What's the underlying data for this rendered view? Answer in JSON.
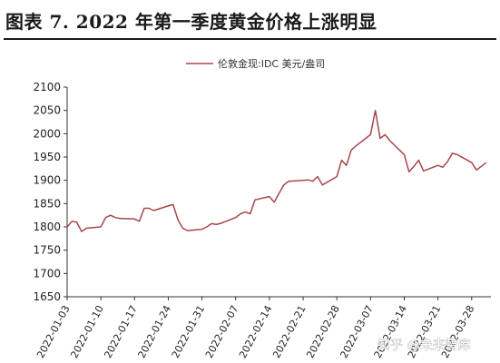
{
  "title": "图表 7.  2022 年第一季度黄金价格上涨明显",
  "watermark": "知乎 @未来智库",
  "colors": {
    "series": "#a8464b",
    "axis": "#333333"
  },
  "chart_data": {
    "type": "line",
    "title": "图表 7.  2022 年第一季度黄金价格上涨明显",
    "ylim": [
      1650,
      2100
    ],
    "yticks": [
      1650,
      1700,
      1750,
      1800,
      1850,
      1900,
      1950,
      2000,
      2050,
      2100
    ],
    "xlim": [
      "2022-01-03",
      "2022-04-01"
    ],
    "xticks": [
      "2022-01-03",
      "2022-01-10",
      "2022-01-17",
      "2022-01-24",
      "2022-01-31",
      "2022-02-07",
      "2022-02-14",
      "2022-02-21",
      "2022-02-28",
      "2022-03-07",
      "2022-03-14",
      "2022-03-21",
      "2022-03-28"
    ],
    "legend": "top-right",
    "series": [
      {
        "name": "伦敦金现:IDC 美元/盎司",
        "x": [
          "2022-01-03",
          "2022-01-04",
          "2022-01-05",
          "2022-01-06",
          "2022-01-07",
          "2022-01-10",
          "2022-01-11",
          "2022-01-12",
          "2022-01-13",
          "2022-01-14",
          "2022-01-17",
          "2022-01-18",
          "2022-01-19",
          "2022-01-20",
          "2022-01-21",
          "2022-01-24",
          "2022-01-25",
          "2022-01-26",
          "2022-01-27",
          "2022-01-28",
          "2022-01-31",
          "2022-02-01",
          "2022-02-02",
          "2022-02-03",
          "2022-02-04",
          "2022-02-07",
          "2022-02-08",
          "2022-02-09",
          "2022-02-10",
          "2022-02-11",
          "2022-02-14",
          "2022-02-15",
          "2022-02-16",
          "2022-02-17",
          "2022-02-18",
          "2022-02-21",
          "2022-02-22",
          "2022-02-23",
          "2022-02-24",
          "2022-02-25",
          "2022-02-28",
          "2022-03-01",
          "2022-03-02",
          "2022-03-03",
          "2022-03-04",
          "2022-03-07",
          "2022-03-08",
          "2022-03-09",
          "2022-03-10",
          "2022-03-11",
          "2022-03-14",
          "2022-03-15",
          "2022-03-16",
          "2022-03-17",
          "2022-03-18",
          "2022-03-21",
          "2022-03-22",
          "2022-03-23",
          "2022-03-24",
          "2022-03-25",
          "2022-03-28",
          "2022-03-29",
          "2022-03-30",
          "2022-03-31"
        ],
        "values": [
          1800,
          1812,
          1810,
          1790,
          1797,
          1800,
          1820,
          1825,
          1820,
          1818,
          1817,
          1812,
          1840,
          1840,
          1835,
          1845,
          1848,
          1815,
          1797,
          1792,
          1795,
          1800,
          1807,
          1805,
          1808,
          1820,
          1828,
          1832,
          1828,
          1858,
          1865,
          1853,
          1872,
          1890,
          1898,
          1900,
          1901,
          1898,
          1908,
          1890,
          1908,
          1943,
          1932,
          1965,
          1974,
          1998,
          2050,
          1990,
          1998,
          1985,
          1955,
          1918,
          1930,
          1943,
          1920,
          1932,
          1928,
          1940,
          1958,
          1955,
          1938,
          1922,
          1930,
          1938
        ]
      }
    ]
  }
}
